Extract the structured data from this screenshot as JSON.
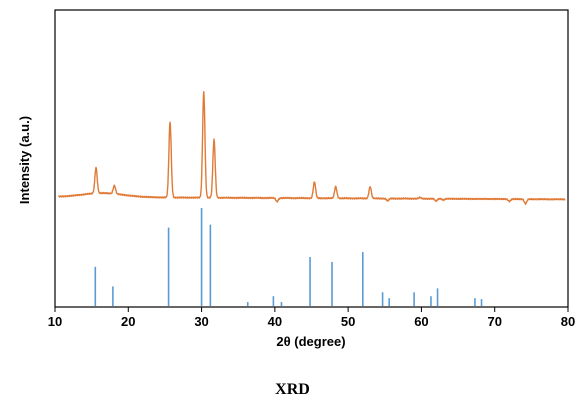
{
  "caption": "XRD",
  "chart_data": {
    "type": "line",
    "xlabel": "2θ (degree)",
    "ylabel": "Intensity (a.u.)",
    "xlim": [
      10,
      80
    ],
    "xticks": [
      10,
      20,
      30,
      40,
      50,
      60,
      70,
      80
    ],
    "grid": false,
    "yticks_shown": false,
    "colors": {
      "measured": "#e07a37",
      "reference": "#5b9bd5",
      "frame": "#000000"
    },
    "series": [
      {
        "kind": "measured-pattern",
        "baseline": 7.0,
        "peaks": [
          {
            "x": 15.6,
            "y": 29
          },
          {
            "x": 18.1,
            "y": 14
          },
          {
            "x": 25.7,
            "y": 72
          },
          {
            "x": 30.3,
            "y": 98
          },
          {
            "x": 31.7,
            "y": 57
          },
          {
            "x": 40.3,
            "y": 4
          },
          {
            "x": 45.4,
            "y": 21
          },
          {
            "x": 48.3,
            "y": 17
          },
          {
            "x": 53.0,
            "y": 17
          },
          {
            "x": 55.4,
            "y": 5
          },
          {
            "x": 59.8,
            "y": 8
          },
          {
            "x": 62.0,
            "y": 5
          },
          {
            "x": 63.0,
            "y": 6
          },
          {
            "x": 72.0,
            "y": 5
          },
          {
            "x": 74.2,
            "y": 3
          }
        ]
      },
      {
        "kind": "reference-sticks",
        "sticks": [
          {
            "x": 15.5,
            "y": 40
          },
          {
            "x": 17.9,
            "y": 20
          },
          {
            "x": 25.5,
            "y": 80
          },
          {
            "x": 30.0,
            "y": 100
          },
          {
            "x": 31.2,
            "y": 83
          },
          {
            "x": 36.3,
            "y": 4
          },
          {
            "x": 39.8,
            "y": 10
          },
          {
            "x": 40.9,
            "y": 4
          },
          {
            "x": 44.8,
            "y": 50
          },
          {
            "x": 47.8,
            "y": 45
          },
          {
            "x": 52.0,
            "y": 55
          },
          {
            "x": 54.7,
            "y": 14
          },
          {
            "x": 55.6,
            "y": 8
          },
          {
            "x": 59.0,
            "y": 14
          },
          {
            "x": 61.3,
            "y": 10
          },
          {
            "x": 62.2,
            "y": 18
          },
          {
            "x": 67.3,
            "y": 8
          },
          {
            "x": 68.2,
            "y": 7
          }
        ]
      }
    ]
  }
}
